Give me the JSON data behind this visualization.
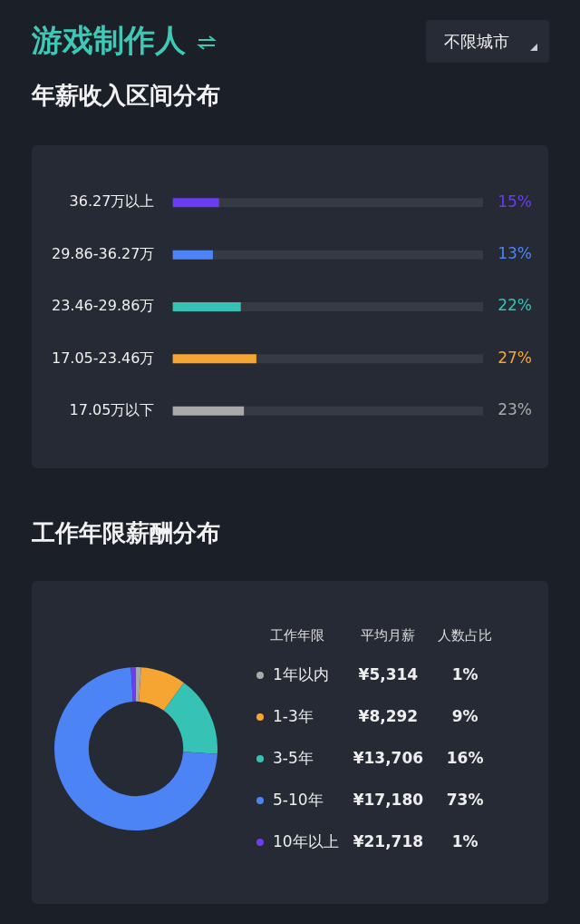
{
  "chart_data": [
    {
      "type": "bar",
      "orientation": "horizontal",
      "title": "游戏制作人",
      "subtitle": "年薪收入区间分布",
      "annotations": [
        "不限城市"
      ],
      "categories": [
        "36.27万以上",
        "29.86-36.27万",
        "23.46-29.86万",
        "17.05-23.46万",
        "17.05万以下"
      ],
      "stacked": true,
      "series": [
        {
          "values": [
            15,
            13,
            22,
            27,
            23
          ],
          "colors": [
            "#6b3cf2",
            "#4c84f6",
            "#36c2b4",
            "#f7a532",
            "#a9a9a9"
          ],
          "value_labels": [
            "15%",
            "13%",
            "22%",
            "27%",
            "23%"
          ]
        },
        {
          "values": [
            85,
            87,
            78,
            73,
            77
          ],
          "color": "#353a45"
        }
      ],
      "tick_labels": "y"
    },
    {
      "type": "donut",
      "title": "工作年限薪酬分布",
      "legend": "right",
      "legend_title": "工作年限",
      "categories": [
        "1年以内",
        "1-3年",
        "3-5年",
        "5-10年",
        "10年以上"
      ],
      "values": [
        1,
        9,
        16,
        73,
        1
      ],
      "colors": [
        "#a9a9a9",
        "#f7a532",
        "#36c2b4",
        "#4c84f6",
        "#6b3cf2"
      ],
      "value_labels": [
        "1%",
        "9%",
        "16%",
        "73%",
        "1%"
      ],
      "annotations": [
        "平均月薪",
        "人数占比",
        {
          "text": "¥5,314",
          "x": "1年以内"
        },
        {
          "text": "¥8,292",
          "x": "1-3年"
        },
        {
          "text": "¥13,706",
          "x": "3-5年"
        },
        {
          "text": "¥17,180",
          "x": "5-10年"
        },
        {
          "text": "¥21,718",
          "x": "10年以上"
        }
      ]
    }
  ]
}
